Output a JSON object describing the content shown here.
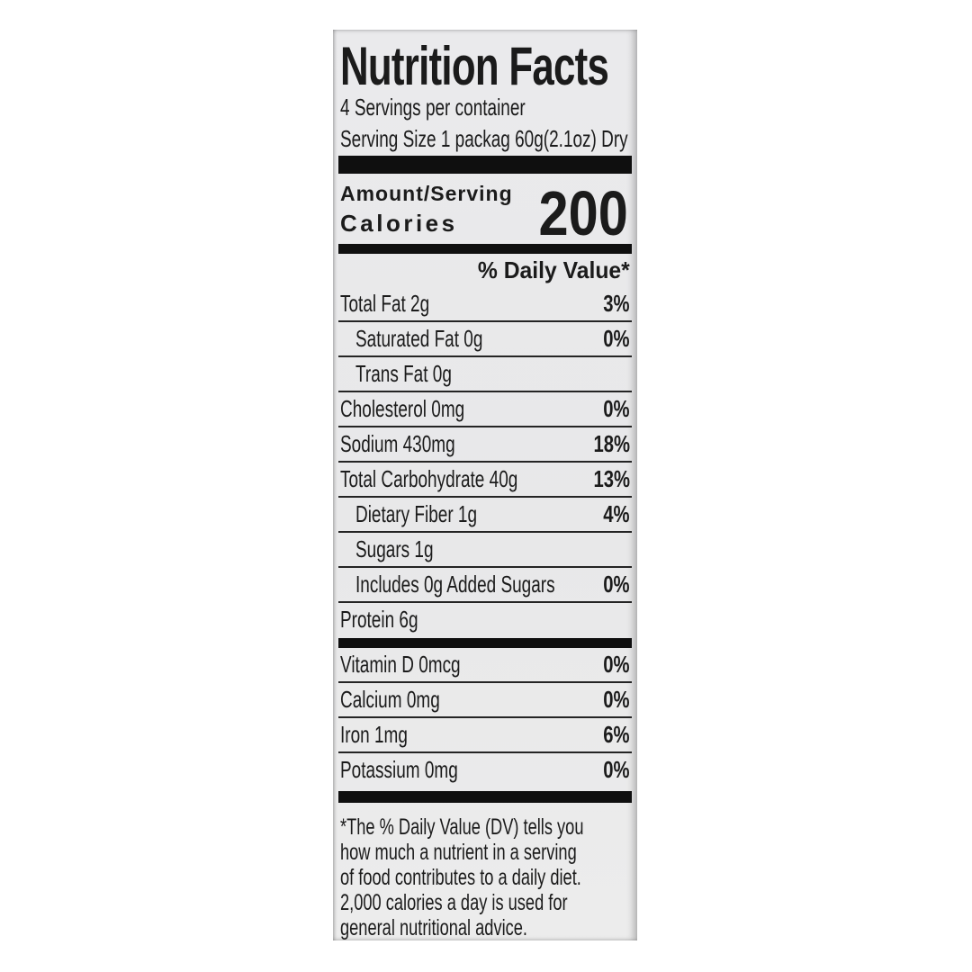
{
  "label": {
    "title": "Nutrition Facts",
    "servings_per_container": "4 Servings per container",
    "serving_size": "Serving Size 1 packag 60g(2.1oz) Dry",
    "calories_header": "Amount/Serving",
    "calories_label": "Calories",
    "calories_value": "200",
    "daily_value_header": "% Daily Value*",
    "nutrient_rows": [
      {
        "label": "Total Fat 2g",
        "dv": "3%",
        "indent": false,
        "divider": true
      },
      {
        "label": "Saturated Fat 0g",
        "dv": "0%",
        "indent": true,
        "divider": true
      },
      {
        "label": "Trans Fat 0g",
        "dv": "",
        "indent": true,
        "divider": true
      },
      {
        "label": "Cholesterol 0mg",
        "dv": "0%",
        "indent": false,
        "divider": true
      },
      {
        "label": "Sodium 430mg",
        "dv": "18%",
        "indent": false,
        "divider": true
      },
      {
        "label": "Total Carbohydrate 40g",
        "dv": "13%",
        "indent": false,
        "divider": true
      },
      {
        "label": "Dietary Fiber 1g",
        "dv": "4%",
        "indent": true,
        "divider": true
      },
      {
        "label": "Sugars 1g",
        "dv": "",
        "indent": true,
        "divider": true
      },
      {
        "label": "Includes 0g Added Sugars",
        "dv": "0%",
        "indent": true,
        "divider": true
      },
      {
        "label": "Protein 6g",
        "dv": "",
        "indent": false,
        "divider": false
      }
    ],
    "micro_rows": [
      {
        "label": "Vitamin D 0mcg",
        "dv": "0%",
        "indent": false,
        "divider": true
      },
      {
        "label": "Calcium 0mg",
        "dv": "0%",
        "indent": false,
        "divider": true
      },
      {
        "label": "Iron 1mg",
        "dv": "6%",
        "indent": false,
        "divider": true
      },
      {
        "label": "Potassium 0mg",
        "dv": "0%",
        "indent": false,
        "divider": false
      }
    ],
    "footnote_lines": [
      "*The % Daily Value (DV) tells you",
      "how much a nutrient in a serving",
      "of food contributes to a daily diet.",
      "2,000 calories a day is used for",
      "general nutritional advice."
    ]
  },
  "colors": {
    "page_bg": "#ffffff",
    "panel_bg": "#e9e9e9",
    "text": "#1b1b1b",
    "bar": "#0f0f0f",
    "divider": "#242424"
  }
}
